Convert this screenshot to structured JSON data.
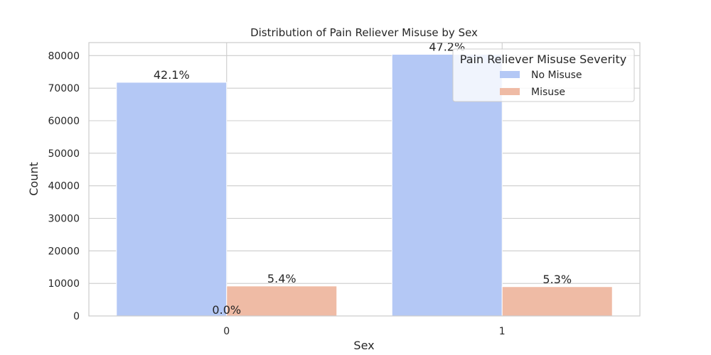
{
  "chart_data": {
    "type": "bar",
    "title": "Distribution of Pain Reliever Misuse by Sex",
    "xlabel": "Sex",
    "ylabel": "Count",
    "categories": [
      "0",
      "1"
    ],
    "series": [
      {
        "name": "No Misuse",
        "values": [
          71800,
          80400
        ],
        "labels": [
          "42.1%",
          "47.2%"
        ],
        "color": "#b4c8f5"
      },
      {
        "name": "Misuse",
        "values": [
          9200,
          9000
        ],
        "labels": [
          "5.4%",
          "5.3%"
        ],
        "color": "#efbba5"
      }
    ],
    "extra_label": {
      "text": "0.0%",
      "category": "0",
      "value": 0
    },
    "yticks": [
      0,
      10000,
      20000,
      30000,
      40000,
      50000,
      60000,
      70000,
      80000
    ],
    "ylim": [
      0,
      84000
    ],
    "grid": true,
    "legend": {
      "title": "Pain Reliever Misuse Severity",
      "placement": "top-right"
    }
  }
}
